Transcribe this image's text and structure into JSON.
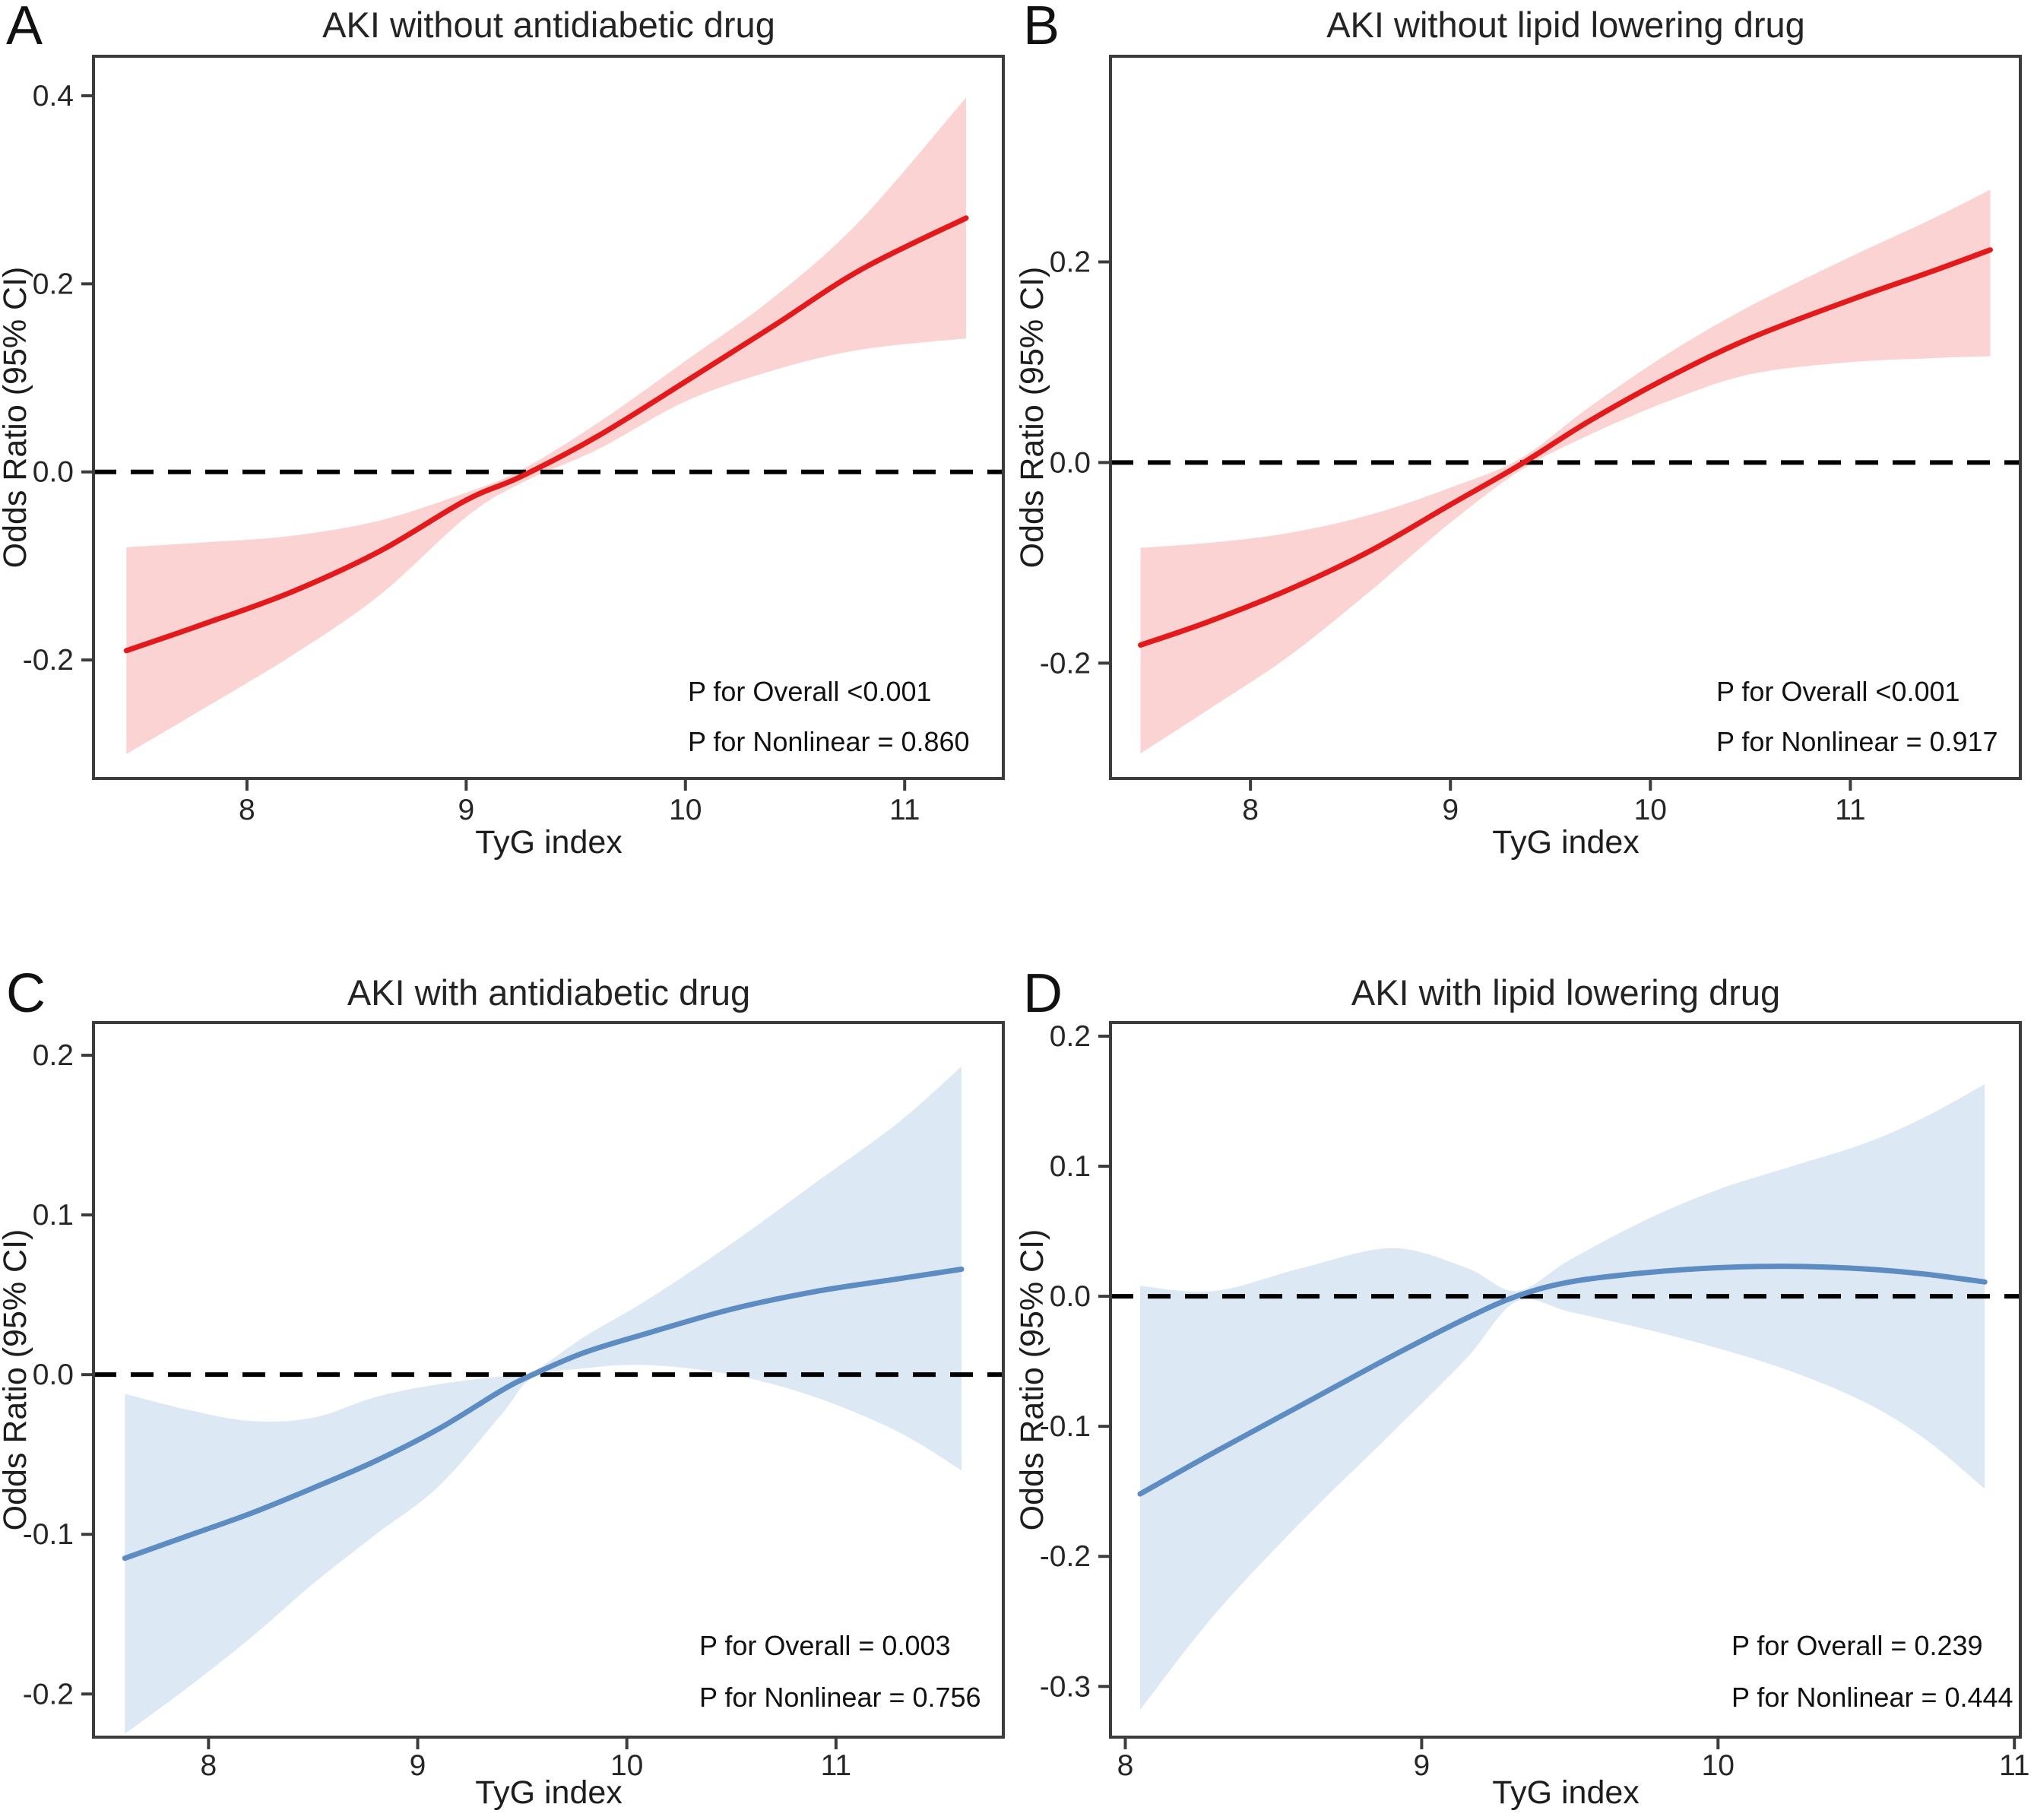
{
  "chart_data": [
    {
      "type": "line",
      "panel_label": "A",
      "title": "AKI without antidiabetic drug",
      "xlabel": "TyG index",
      "ylabel": "Odds Ratio (95% CI)",
      "x_tick_values": [
        8,
        9,
        10,
        11
      ],
      "x_tick_labels": [
        "8",
        "9",
        "10",
        "11"
      ],
      "y_tick_values": [
        0.4,
        0.2,
        0.0,
        -0.2
      ],
      "y_tick_labels": [
        "0.4",
        "0.2",
        "0.0",
        "-0.2"
      ],
      "xlim": [
        7.3,
        11.45
      ],
      "ylim": [
        -0.326,
        0.442
      ],
      "ref_line_y": 0.0,
      "line_color": "#E31A1C",
      "band_color": "#FBD3D3",
      "annotations": [
        "P for Overall <0.001",
        "P for Nonlinear = 0.860"
      ],
      "series": {
        "x": [
          7.45,
          7.8,
          8.2,
          8.6,
          9.0,
          9.25,
          9.6,
          10.0,
          10.4,
          10.8,
          11.28
        ],
        "line": [
          -0.19,
          -0.162,
          -0.128,
          -0.085,
          -0.03,
          -0.005,
          0.038,
          0.096,
          0.155,
          0.215,
          0.27
        ],
        "ci_upper": [
          -0.08,
          -0.075,
          -0.068,
          -0.052,
          -0.022,
          0.002,
          0.052,
          0.118,
          0.185,
          0.268,
          0.398
        ],
        "ci_lower": [
          -0.3,
          -0.252,
          -0.196,
          -0.132,
          -0.048,
          -0.012,
          0.024,
          0.075,
          0.108,
          0.13,
          0.142
        ]
      }
    },
    {
      "type": "line",
      "panel_label": "B",
      "title": "AKI without lipid lowering drug",
      "xlabel": "TyG index",
      "ylabel": "Odds Ratio (95% CI)",
      "x_tick_values": [
        8,
        9,
        10,
        11
      ],
      "x_tick_labels": [
        "8",
        "9",
        "10",
        "11"
      ],
      "y_tick_values": [
        0.2,
        0.0,
        -0.2
      ],
      "y_tick_labels": [
        "0.2",
        "0.0",
        "-0.2"
      ],
      "xlim": [
        7.3,
        11.85
      ],
      "ylim": [
        -0.315,
        0.405
      ],
      "ref_line_y": 0.0,
      "line_color": "#E31A1C",
      "band_color": "#FBD3D3",
      "annotations": [
        "P for Overall <0.001",
        "P for Nonlinear = 0.917"
      ],
      "series": {
        "x": [
          7.45,
          7.8,
          8.2,
          8.6,
          9.0,
          9.35,
          9.7,
          10.1,
          10.5,
          11.0,
          11.4,
          11.7
        ],
        "line": [
          -0.182,
          -0.158,
          -0.126,
          -0.088,
          -0.042,
          -0.002,
          0.042,
          0.086,
          0.124,
          0.162,
          0.19,
          0.212
        ],
        "ci_upper": [
          -0.085,
          -0.08,
          -0.07,
          -0.052,
          -0.025,
          0.004,
          0.056,
          0.11,
          0.156,
          0.205,
          0.242,
          0.272
        ],
        "ci_lower": [
          -0.29,
          -0.245,
          -0.192,
          -0.128,
          -0.06,
          -0.008,
          0.028,
          0.062,
          0.088,
          0.1,
          0.104,
          0.106
        ]
      }
    },
    {
      "type": "line",
      "panel_label": "C",
      "title": "AKI with antidiabetic drug",
      "xlabel": "TyG index",
      "ylabel": "Odds Ratio (95% CI)",
      "x_tick_values": [
        8,
        9,
        10,
        11
      ],
      "x_tick_labels": [
        "8",
        "9",
        "10",
        "11"
      ],
      "y_tick_values": [
        0.2,
        0.1,
        0.0,
        -0.1,
        -0.2
      ],
      "y_tick_labels": [
        "0.2",
        "0.1",
        "0.0",
        "-0.1",
        "-0.2"
      ],
      "xlim": [
        7.45,
        11.8
      ],
      "ylim": [
        -0.227,
        0.2205
      ],
      "ref_line_y": 0.0,
      "line_color": "#5C8CC2",
      "band_color": "#DDE8F5",
      "annotations": [
        "P for Overall = 0.003",
        "P for Nonlinear = 0.756"
      ],
      "series": {
        "x": [
          7.6,
          7.9,
          8.2,
          8.5,
          8.8,
          9.1,
          9.4,
          9.55,
          9.8,
          10.1,
          10.5,
          10.9,
          11.3,
          11.6
        ],
        "line": [
          -0.115,
          -0.101,
          -0.087,
          -0.071,
          -0.054,
          -0.034,
          -0.01,
          0.0,
          0.014,
          0.026,
          0.041,
          0.052,
          0.06,
          0.066
        ],
        "ci_upper": [
          -0.012,
          -0.022,
          -0.029,
          -0.027,
          -0.014,
          -0.006,
          -0.001,
          0.002,
          0.024,
          0.047,
          0.082,
          0.12,
          0.158,
          0.193
        ],
        "ci_lower": [
          -0.225,
          -0.196,
          -0.165,
          -0.131,
          -0.1,
          -0.07,
          -0.025,
          -0.002,
          0.004,
          0.006,
          0.0,
          -0.014,
          -0.036,
          -0.06
        ]
      }
    },
    {
      "type": "line",
      "panel_label": "D",
      "title": "AKI with lipid lowering drug",
      "xlabel": "TyG index",
      "ylabel": "Odds Ratio (95% CI)",
      "x_tick_values": [
        8,
        9,
        10,
        11
      ],
      "x_tick_labels": [
        "8",
        "9",
        "10",
        "11"
      ],
      "y_tick_values": [
        0.2,
        0.1,
        0.0,
        -0.1,
        -0.2,
        -0.3
      ],
      "y_tick_labels": [
        "0.2",
        "0.1",
        "0.0",
        "-0.1",
        "-0.2",
        "-0.3"
      ],
      "xlim": [
        7.95,
        11.02
      ],
      "ylim": [
        -0.339,
        0.2105
      ],
      "ref_line_y": 0.0,
      "line_color": "#5C8CC2",
      "band_color": "#DDE8F5",
      "annotations": [
        "P for Overall = 0.239",
        "P for Nonlinear = 0.444"
      ],
      "series": {
        "x": [
          8.05,
          8.3,
          8.6,
          8.9,
          9.15,
          9.32,
          9.5,
          9.75,
          10.0,
          10.25,
          10.5,
          10.7,
          10.9
        ],
        "line": [
          -0.152,
          -0.12,
          -0.083,
          -0.046,
          -0.017,
          0.0,
          0.011,
          0.018,
          0.022,
          0.023,
          0.021,
          0.017,
          0.011
        ],
        "ci_upper": [
          0.008,
          0.004,
          0.022,
          0.037,
          0.022,
          0.004,
          0.028,
          0.058,
          0.082,
          0.1,
          0.118,
          0.138,
          0.163
        ],
        "ci_lower": [
          -0.318,
          -0.245,
          -0.172,
          -0.105,
          -0.048,
          -0.004,
          -0.012,
          -0.025,
          -0.04,
          -0.058,
          -0.082,
          -0.11,
          -0.148
        ]
      }
    }
  ],
  "style_colors": {
    "frame": "#3C3C3C",
    "reference_dash": "#000000",
    "red_line": "#E31A1C",
    "pink_band": "#FBD3D3",
    "blue_line": "#5C8CC2",
    "blue_band": "#DDE8F5"
  }
}
